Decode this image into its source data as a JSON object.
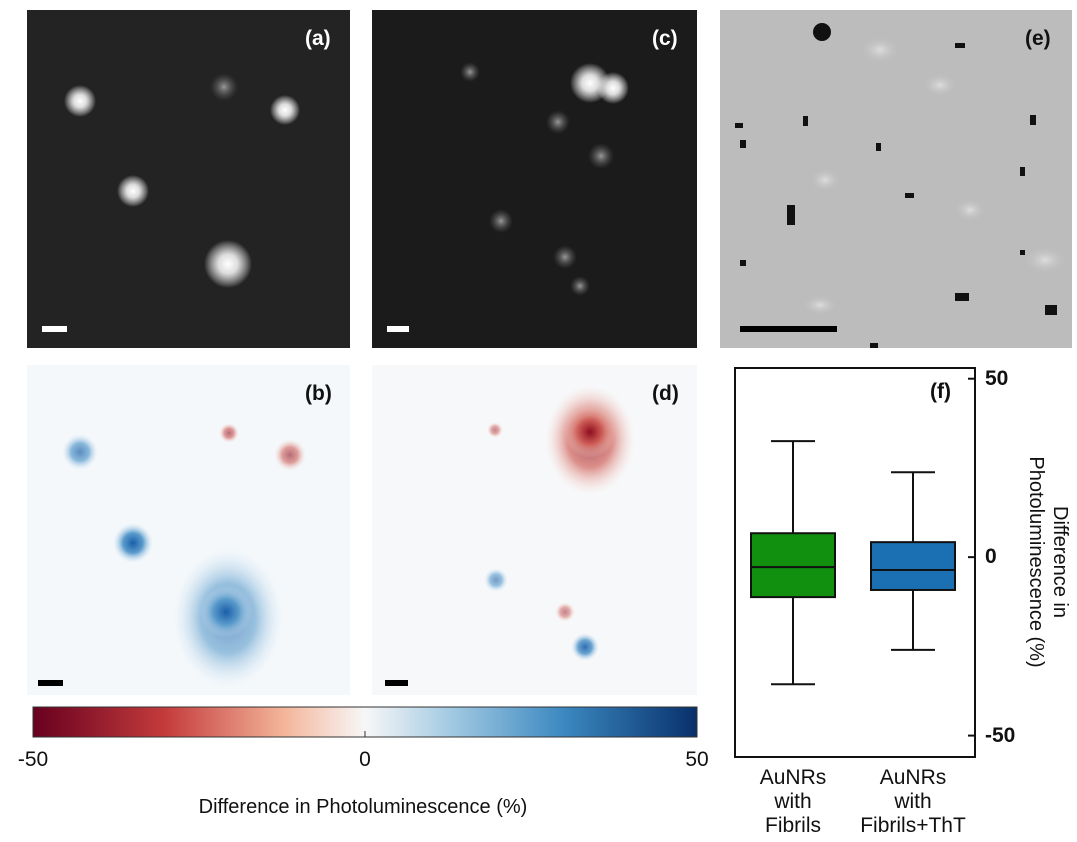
{
  "panel_labels": [
    "(a)",
    "(b)",
    "(c)",
    "(d)",
    "(e)",
    "(f)"
  ],
  "colorbar": {
    "label": "Difference in Photoluminescence (%)",
    "lim": [
      -50,
      50
    ],
    "ticks": [
      -50,
      0,
      50
    ]
  },
  "chart_data": {
    "type": "box",
    "categories": [
      "AuNRs with Fibrils",
      "AuNRs with Fibrils+ThT"
    ],
    "boxes": [
      {
        "color": "#11900f",
        "whisker_low": -35.6,
        "q1": -11.2,
        "median": -2.8,
        "q3": 6.7,
        "whisker_high": 32.5
      },
      {
        "color": "#1a70b2",
        "whisker_low": -26,
        "q1": -9.2,
        "median": -3.6,
        "q3": 4.2,
        "whisker_high": 23.8
      }
    ],
    "ylabel": "Difference in Photoluminescence (%)",
    "ylim": [
      -56,
      53
    ],
    "yticks": [
      -50,
      0,
      50
    ]
  }
}
